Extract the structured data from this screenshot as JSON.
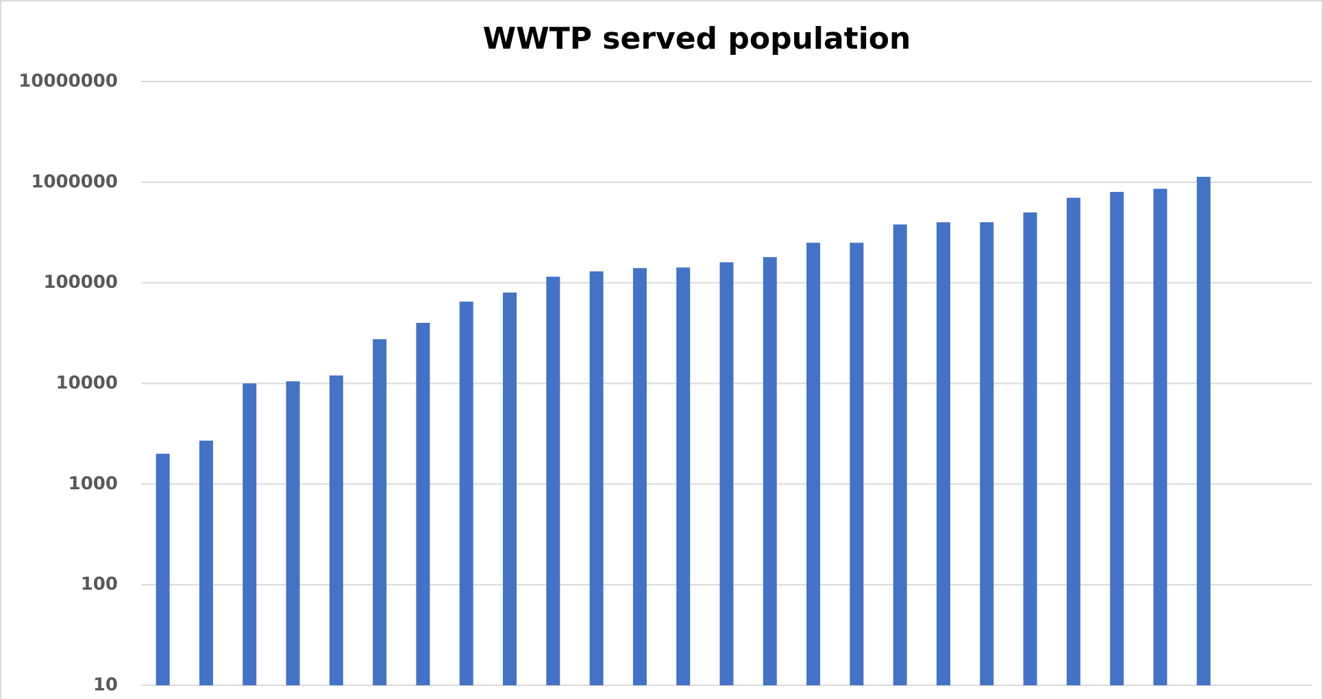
{
  "chart_data": {
    "type": "bar",
    "title": "WWTP served population",
    "categories": [
      null,
      null,
      null,
      null,
      null,
      null,
      null,
      null,
      null,
      null,
      null,
      null,
      null,
      null,
      null,
      null,
      null,
      null,
      null,
      null,
      null,
      null,
      null,
      null,
      null
    ],
    "values": [
      2000,
      2700,
      10000,
      10500,
      12000,
      27500,
      40000,
      65000,
      80000,
      115000,
      130000,
      140000,
      142000,
      160000,
      180000,
      250000,
      250000,
      380000,
      400000,
      400000,
      500000,
      700000,
      800000,
      860000,
      1130000
    ],
    "color": "#4472c4",
    "log_scale": true,
    "ylim": [
      10,
      10000000
    ],
    "yticks": [
      10,
      100,
      1000,
      10000,
      100000,
      1000000,
      10000000
    ],
    "grid": true
  }
}
